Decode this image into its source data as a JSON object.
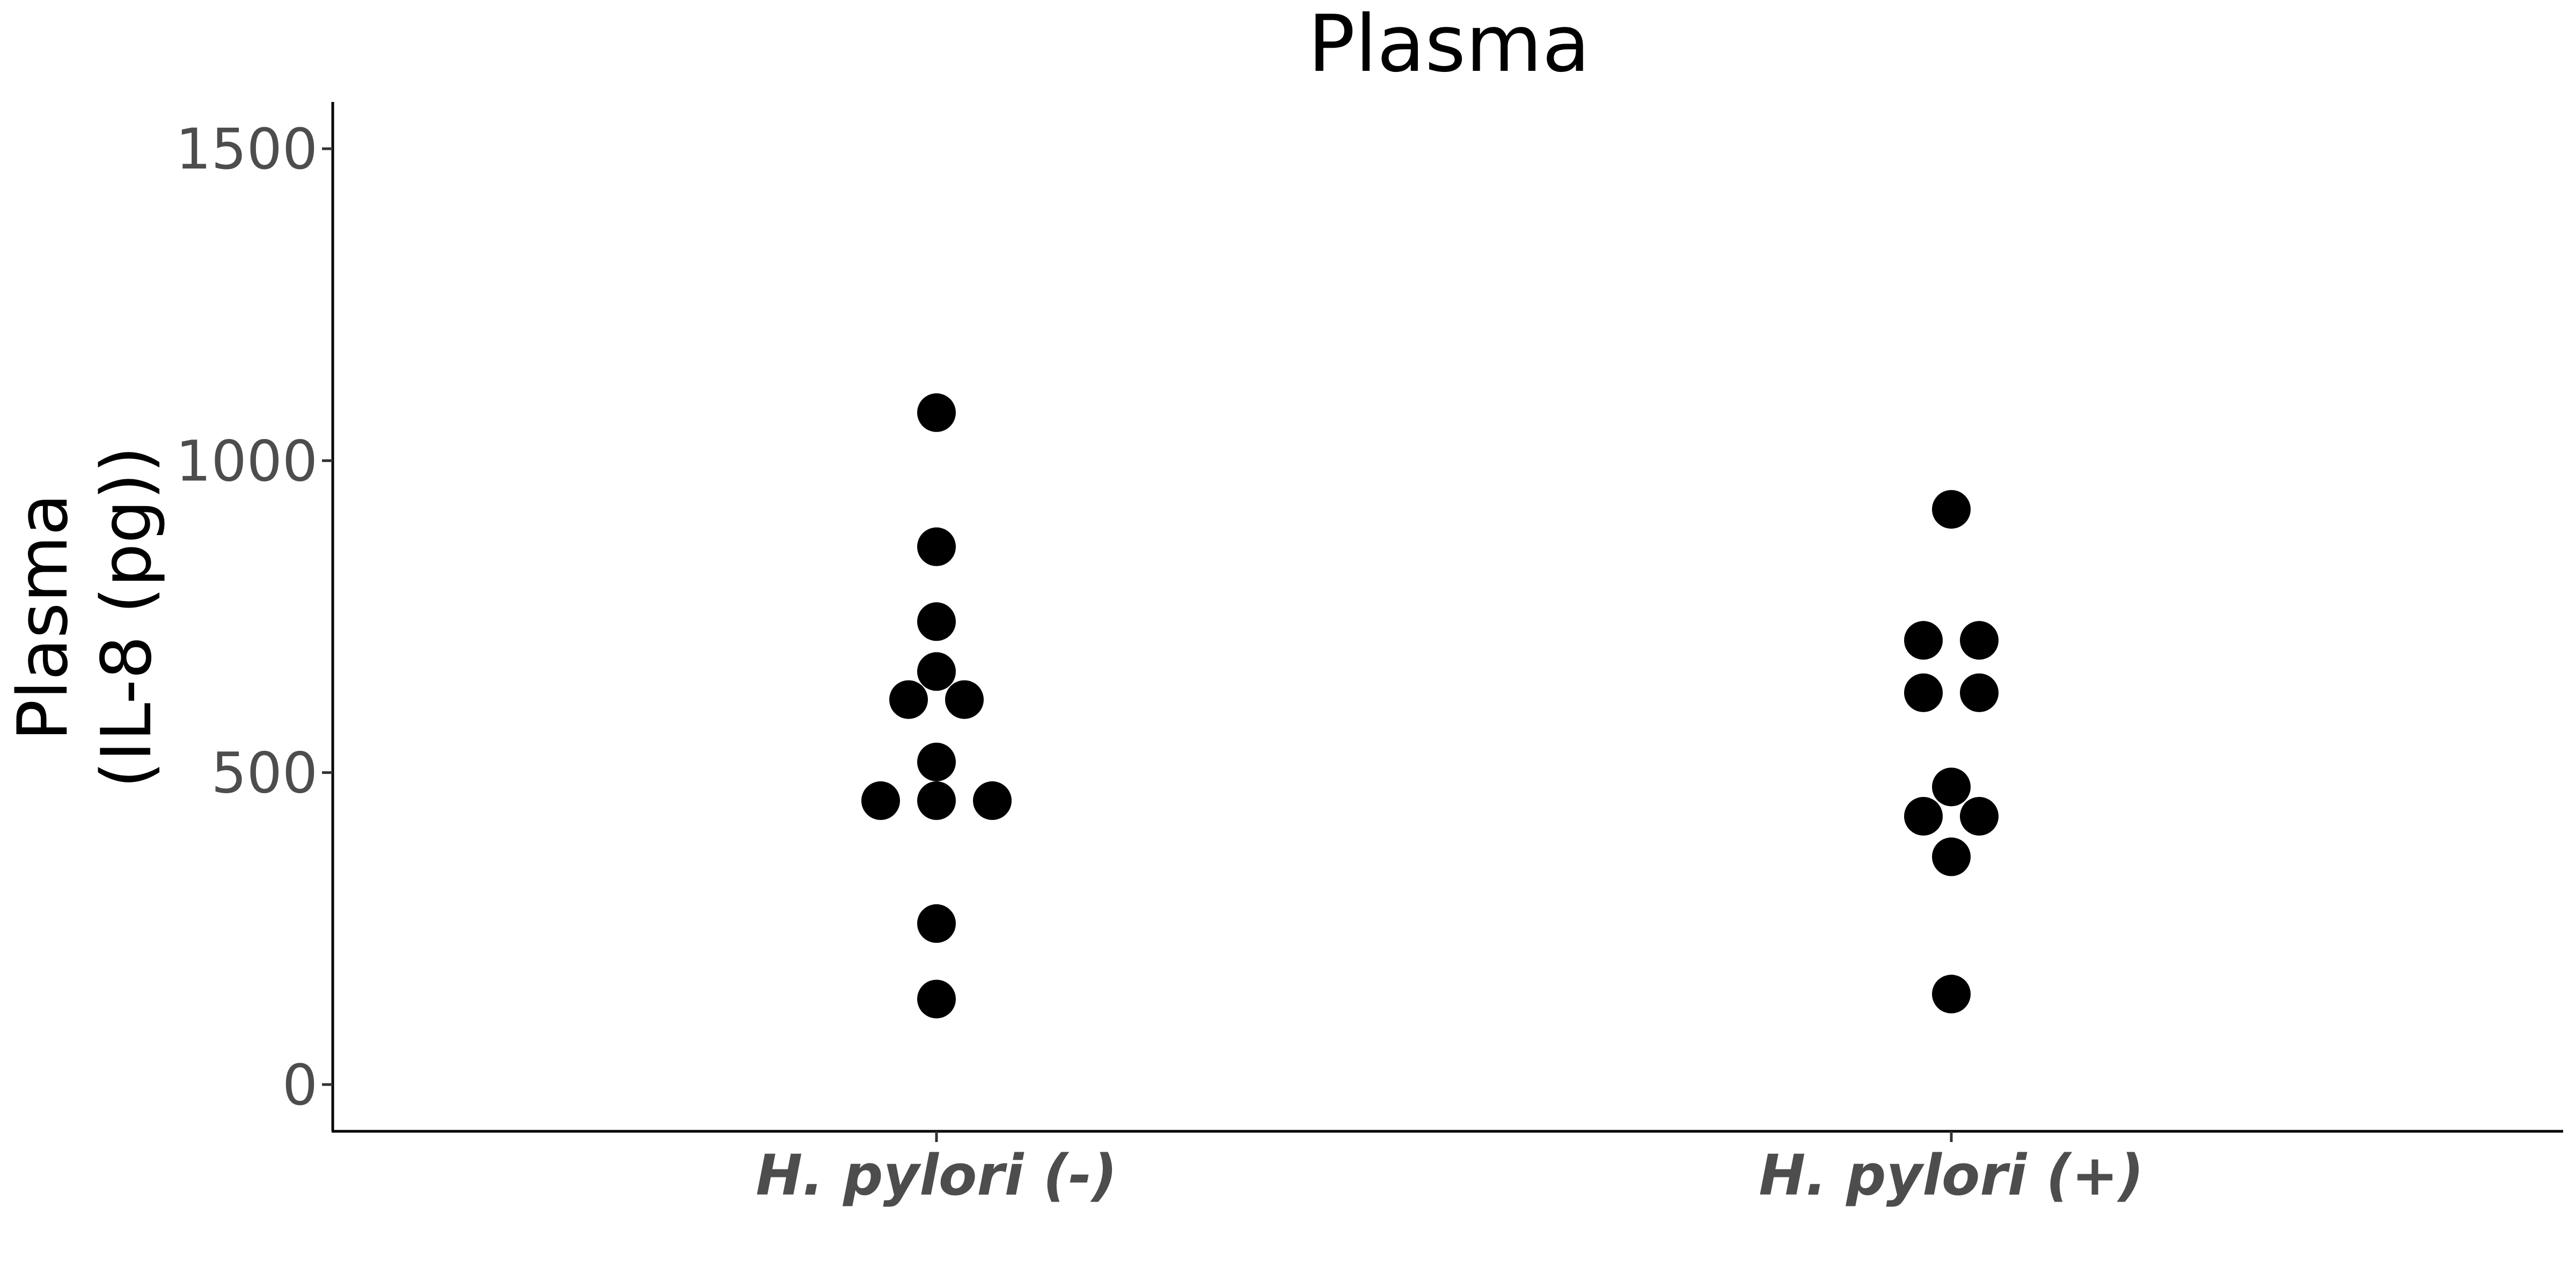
{
  "chart_data": {
    "type": "scatter",
    "title": "Plasma",
    "ylabel_lines": [
      "Plasma",
      "(IL-8 (pg))"
    ],
    "xlabel": "",
    "categories": [
      "H. pylori (-)",
      "H. pylori (+)"
    ],
    "ylim": [
      -75,
      1575
    ],
    "yticks": [
      0,
      500,
      1000,
      1500
    ],
    "ytick_labels": [
      "0",
      "500",
      "1000",
      "1500"
    ],
    "grid": false,
    "legend": "none",
    "point_color": "#000000",
    "groups": [
      {
        "category": "H. pylori (-)",
        "points": [
          {
            "value": 1077,
            "offset": 0
          },
          {
            "value": 862,
            "offset": 0
          },
          {
            "value": 742,
            "offset": 0
          },
          {
            "value": 662,
            "offset": 0
          },
          {
            "value": 617,
            "offset": -1
          },
          {
            "value": 617,
            "offset": 1
          },
          {
            "value": 517,
            "offset": 0
          },
          {
            "value": 455,
            "offset": -2
          },
          {
            "value": 455,
            "offset": 0
          },
          {
            "value": 455,
            "offset": 2
          },
          {
            "value": 258,
            "offset": 0
          },
          {
            "value": 137,
            "offset": 0
          }
        ]
      },
      {
        "category": "H. pylori (+)",
        "points": [
          {
            "value": 922,
            "offset": 0
          },
          {
            "value": 712,
            "offset": -1
          },
          {
            "value": 712,
            "offset": 1
          },
          {
            "value": 628,
            "offset": -1
          },
          {
            "value": 628,
            "offset": 1
          },
          {
            "value": 477,
            "offset": 0
          },
          {
            "value": 430,
            "offset": -1
          },
          {
            "value": 430,
            "offset": 1
          },
          {
            "value": 365,
            "offset": 0
          },
          {
            "value": 145,
            "offset": 0
          }
        ]
      }
    ]
  }
}
